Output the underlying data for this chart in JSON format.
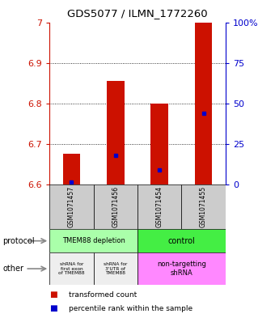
{
  "title": "GDS5077 / ILMN_1772260",
  "samples": [
    "GSM1071457",
    "GSM1071456",
    "GSM1071454",
    "GSM1071455"
  ],
  "red_bar_bottom": 6.6,
  "red_bar_tops": [
    6.675,
    6.855,
    6.8,
    7.0
  ],
  "blue_marker_values": [
    6.605,
    6.672,
    6.635,
    6.775
  ],
  "ylim_left": [
    6.6,
    7.0
  ],
  "ylim_right": [
    0,
    100
  ],
  "yticks_left": [
    6.6,
    6.7,
    6.8,
    6.9,
    7.0
  ],
  "ytick_labels_left": [
    "6.6",
    "6.7",
    "6.8",
    "6.9",
    "7"
  ],
  "yticks_right": [
    0,
    25,
    50,
    75,
    100
  ],
  "ytick_labels_right": [
    "0",
    "25",
    "50",
    "75",
    "100%"
  ],
  "bar_width": 0.4,
  "bar_color": "#CC1100",
  "marker_color": "#0000CC",
  "protocol_label1": "TMEM88 depletion",
  "protocol_color1": "#aaffaa",
  "protocol_label2": "control",
  "protocol_color2": "#44ee44",
  "other_label1": "shRNA for\nfirst exon\nof TMEM88",
  "other_label2": "shRNA for\n3'UTR of\nTMEM88",
  "other_label3": "non-targetting\nshRNA",
  "other_color12": "#eeeeee",
  "other_color3": "#ff88ff",
  "sample_bg": "#cccccc",
  "legend_red": "transformed count",
  "legend_blue": "percentile rank within the sample"
}
